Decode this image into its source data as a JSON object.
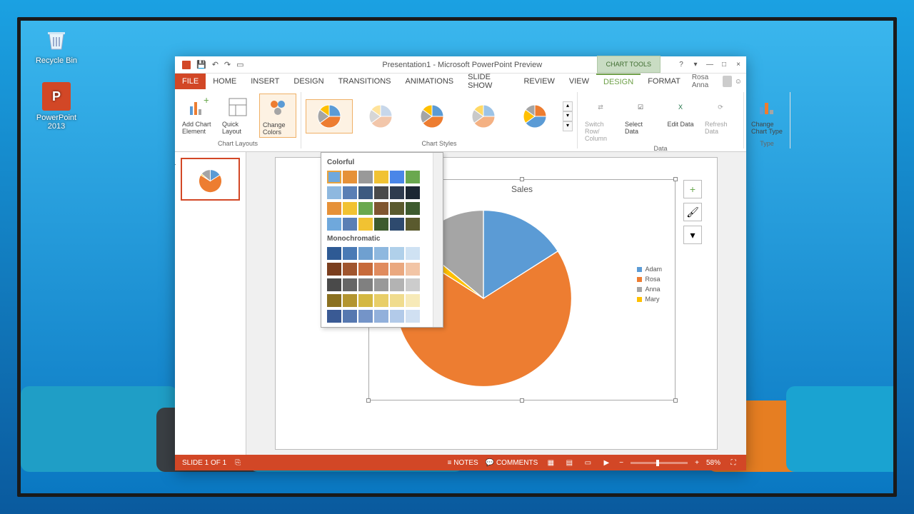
{
  "desktop": {
    "recycle_label": "Recycle Bin",
    "ppt_label": "PowerPoint 2013"
  },
  "shapes_colors": [
    "#1f9ec6",
    "#3a3f44",
    "#1aa3d1",
    "#e67e22",
    "#1aa3d1"
  ],
  "window": {
    "title": "Presentation1 - Microsoft PowerPoint Preview",
    "chart_tools_label": "CHART TOOLS",
    "user_name": "Rosa Anna"
  },
  "tabs": [
    "FILE",
    "HOME",
    "INSERT",
    "DESIGN",
    "TRANSITIONS",
    "ANIMATIONS",
    "SLIDE SHOW",
    "REVIEW",
    "VIEW",
    "DESIGN",
    "FORMAT"
  ],
  "active_tab_index": 9,
  "ribbon": {
    "groups": {
      "layouts": {
        "label": "Chart Layouts",
        "buttons": [
          "Add Chart Element",
          "Quick Layout",
          "Change Colors"
        ]
      },
      "styles": {
        "label": "Chart Styles"
      },
      "data": {
        "label": "Data",
        "buttons": [
          "Switch Row/ Column",
          "Select Data",
          "Edit Data",
          "Refresh Data"
        ]
      },
      "type": {
        "label": "Type",
        "buttons": [
          "Change Chart Type"
        ]
      }
    }
  },
  "style_gallery_pie_colors": [
    [
      "#5b9bd5",
      "#ed7d31",
      "#a5a5a5",
      "#ffc000"
    ],
    [
      "#c7d7ea",
      "#f2c6aa",
      "#d6d6d6",
      "#ffe39b"
    ],
    [
      "#5b9bd5",
      "#ed7d31",
      "#a5a5a5",
      "#ffc000"
    ],
    [
      "#9cc3e6",
      "#f4b183",
      "#c9c9c9",
      "#ffd966"
    ],
    [
      "#ed7d31",
      "#5b9bd5",
      "#ffc000",
      "#a5a5a5"
    ]
  ],
  "slide": {
    "number": "1",
    "chart": {
      "title": "Sales",
      "type": "pie",
      "legend": [
        {
          "label": "Adam",
          "color": "#5b9bd5"
        },
        {
          "label": "Rosa",
          "color": "#ed7d31"
        },
        {
          "label": "Anna",
          "color": "#a5a5a5"
        },
        {
          "label": "Mary",
          "color": "#ffc000"
        }
      ],
      "slices": [
        {
          "value": 16,
          "color": "#5b9bd5"
        },
        {
          "value": 68,
          "color": "#ed7d31"
        },
        {
          "value": 2,
          "color": "#ffc000"
        },
        {
          "value": 14,
          "color": "#a5a5a5"
        }
      ],
      "background": "#ffffff"
    }
  },
  "color_dropdown": {
    "section1": "Colorful",
    "section2": "Monochromatic",
    "colorful_rows": [
      [
        "#6fa8dc",
        "#e69138",
        "#999999",
        "#f1c232",
        "#4a86e8",
        "#6aa84f"
      ],
      [
        "#8eb8df",
        "#5a7fb5",
        "#3d5a80",
        "#4a4a4a",
        "#2e3b4e",
        "#1c2733"
      ],
      [
        "#e69138",
        "#f1c232",
        "#6aa84f",
        "#7f5630",
        "#5a5a2e",
        "#3d5a2e"
      ],
      [
        "#6fa8dc",
        "#5a7fb5",
        "#f1c232",
        "#3d5a2e",
        "#2e4a6e",
        "#5a5a2e"
      ]
    ],
    "mono_rows": [
      [
        "#2e5a94",
        "#4a7ab5",
        "#6fa0d0",
        "#8eb8df",
        "#b0d0ea",
        "#cfe2f3"
      ],
      [
        "#7a3e1e",
        "#a0552e",
        "#c76a3a",
        "#e08b5e",
        "#eaa87f",
        "#f2c5a6"
      ],
      [
        "#4a4a4a",
        "#666666",
        "#808080",
        "#999999",
        "#b3b3b3",
        "#cccccc"
      ],
      [
        "#8a7020",
        "#b39530",
        "#d4b842",
        "#e8ce68",
        "#f0dc8e",
        "#f7eab8"
      ],
      [
        "#3a5a94",
        "#5678b0",
        "#7494c8",
        "#92b0db",
        "#b2cae9",
        "#d0e0f2"
      ]
    ]
  },
  "statusbar": {
    "slide_count": "SLIDE 1 OF 1",
    "notes": "NOTES",
    "comments": "COMMENTS",
    "zoom": "58%"
  }
}
